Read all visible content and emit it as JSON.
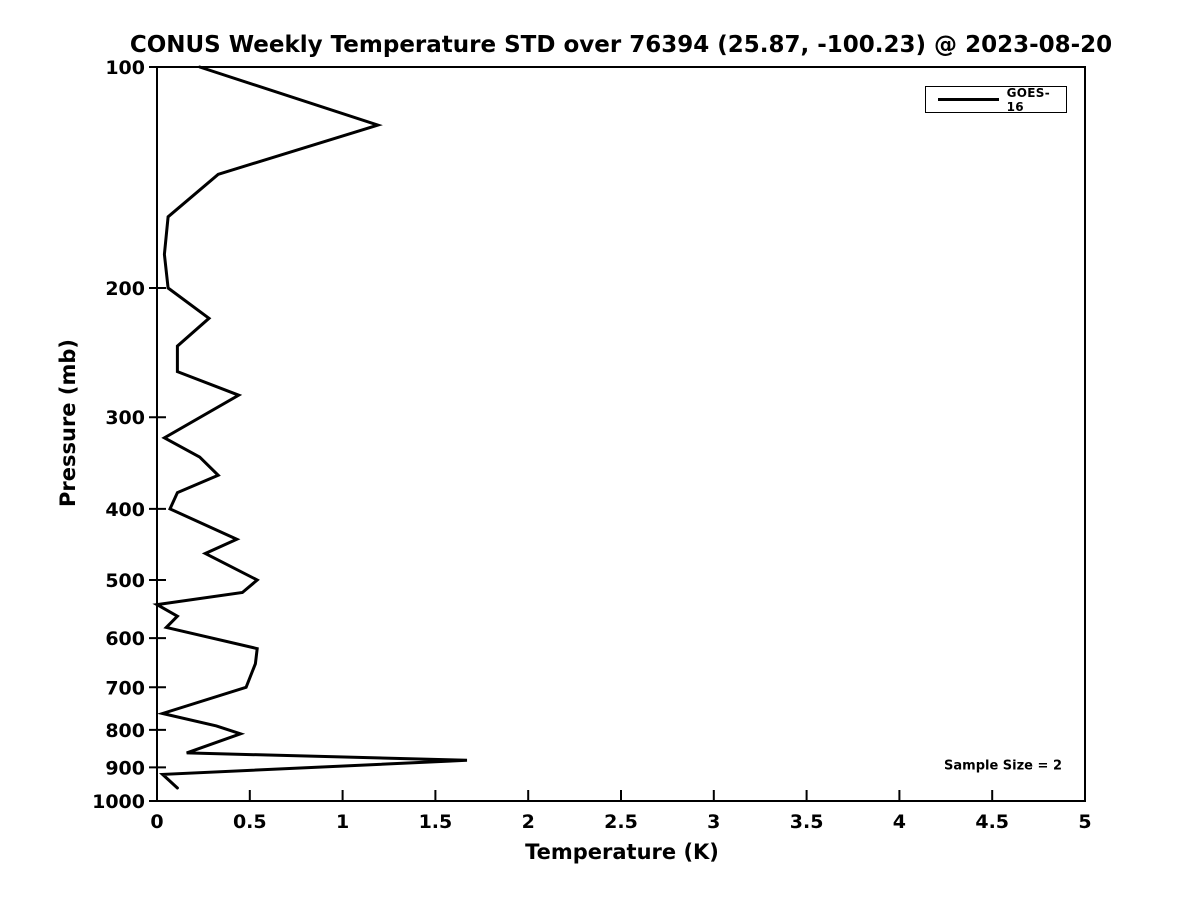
{
  "figure": {
    "background": "#ffffff",
    "foreground": "#000000"
  },
  "chart_data": {
    "type": "line",
    "title": "CONUS Weekly Temperature STD over 76394 (25.87, -100.23) @ 2023-08-20",
    "xlabel": "Temperature (K)",
    "ylabel": "Pressure (mb)",
    "xlim": [
      0,
      5
    ],
    "xticks": [
      0,
      0.5,
      1,
      1.5,
      2,
      2.5,
      3,
      3.5,
      4,
      4.5,
      5
    ],
    "ylim": [
      100,
      1000
    ],
    "yticks": [
      100,
      200,
      300,
      400,
      500,
      600,
      700,
      800,
      900,
      1000
    ],
    "yscale": "log",
    "y_axis_inverted": true,
    "grid": false,
    "legend": {
      "position": "top-right",
      "entries": [
        {
          "label": "GOES-16",
          "color": "#000000"
        }
      ]
    },
    "annotation": {
      "text": "Sample Size = 2"
    },
    "series": [
      {
        "name": "GOES-16",
        "color": "#000000",
        "line_width": 3,
        "x_units": "K",
        "y_units": "mb",
        "points": [
          {
            "pressure": 100,
            "std": 0.23
          },
          {
            "pressure": 120,
            "std": 1.19
          },
          {
            "pressure": 140,
            "std": 0.33
          },
          {
            "pressure": 160,
            "std": 0.06
          },
          {
            "pressure": 180,
            "std": 0.04
          },
          {
            "pressure": 200,
            "std": 0.06
          },
          {
            "pressure": 220,
            "std": 0.28
          },
          {
            "pressure": 240,
            "std": 0.11
          },
          {
            "pressure": 260,
            "std": 0.11
          },
          {
            "pressure": 280,
            "std": 0.44
          },
          {
            "pressure": 320,
            "std": 0.04
          },
          {
            "pressure": 340,
            "std": 0.23
          },
          {
            "pressure": 360,
            "std": 0.33
          },
          {
            "pressure": 380,
            "std": 0.11
          },
          {
            "pressure": 400,
            "std": 0.07
          },
          {
            "pressure": 440,
            "std": 0.43
          },
          {
            "pressure": 460,
            "std": 0.26
          },
          {
            "pressure": 500,
            "std": 0.54
          },
          {
            "pressure": 520,
            "std": 0.46
          },
          {
            "pressure": 540,
            "std": 0.0
          },
          {
            "pressure": 560,
            "std": 0.11
          },
          {
            "pressure": 580,
            "std": 0.05
          },
          {
            "pressure": 620,
            "std": 0.54
          },
          {
            "pressure": 650,
            "std": 0.53
          },
          {
            "pressure": 700,
            "std": 0.48
          },
          {
            "pressure": 760,
            "std": 0.03
          },
          {
            "pressure": 790,
            "std": 0.32
          },
          {
            "pressure": 810,
            "std": 0.45
          },
          {
            "pressure": 860,
            "std": 0.16
          },
          {
            "pressure": 880,
            "std": 1.67
          },
          {
            "pressure": 920,
            "std": 0.03
          },
          {
            "pressure": 960,
            "std": 0.11
          }
        ]
      }
    ]
  }
}
